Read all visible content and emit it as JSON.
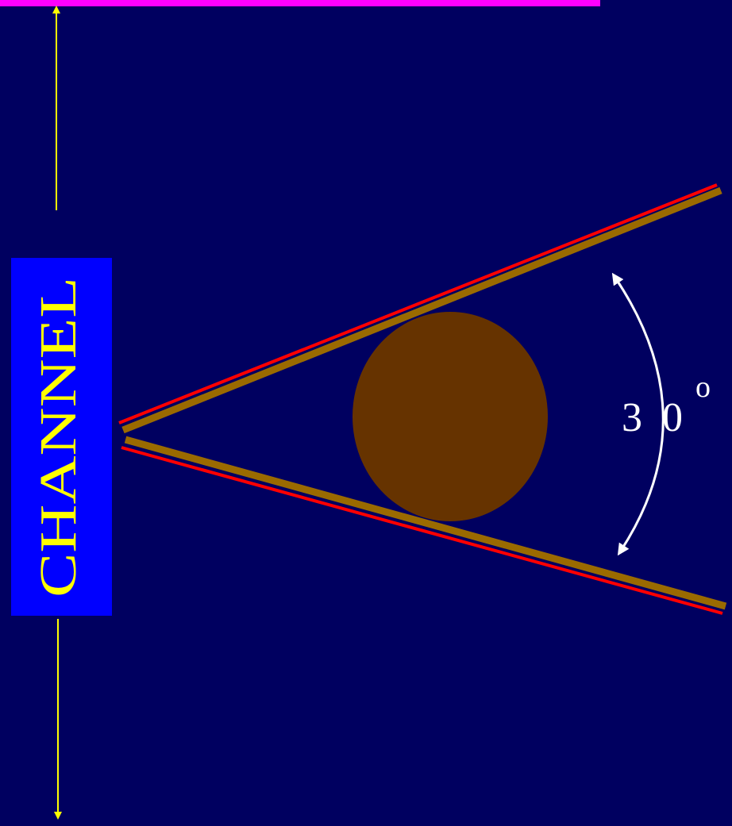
{
  "diagram": {
    "channel_label": "CHANNEL",
    "angle_digit_1": "3",
    "angle_digit_2": "0",
    "degree_mark": "o",
    "colors": {
      "background": "#000060",
      "top_bar": "#ff00ff",
      "channel_box": "#0000ff",
      "channel_text": "#ffff00",
      "arrow": "#ffff00",
      "plate": "#9a6a00",
      "plate_edge": "#ff0000",
      "ball": "#663300",
      "angle_arrow": "#ffffff",
      "angle_text": "#ffffff"
    }
  }
}
